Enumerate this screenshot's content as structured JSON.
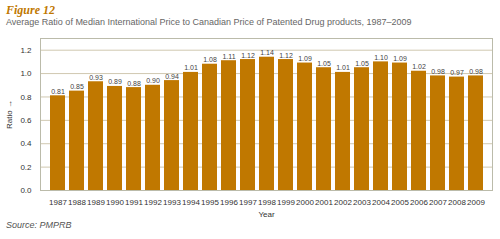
{
  "chart_data": {
    "type": "bar",
    "title": "Figure 12",
    "subtitle": "Average Ratio of Median International Price to Canadian Price of Patented Drug products, 1987–2009",
    "xlabel": "Year",
    "ylabel": "Ratio",
    "annotations": [
      "Source: PMPRB"
    ],
    "categories": [
      "1987",
      "1988",
      "1989",
      "1990",
      "1991",
      "1992",
      "1993",
      "1994",
      "1995",
      "1996",
      "1997",
      "1998",
      "1999",
      "2000",
      "2001",
      "2002",
      "2003",
      "2004",
      "2005",
      "2006",
      "2007",
      "2008",
      "2009"
    ],
    "values": [
      0.81,
      0.85,
      0.93,
      0.89,
      0.88,
      0.9,
      0.94,
      1.01,
      1.08,
      1.11,
      1.12,
      1.14,
      1.12,
      1.09,
      1.05,
      1.01,
      1.05,
      1.1,
      1.09,
      1.02,
      0.98,
      0.97,
      0.98
    ],
    "value_labels": [
      "0.81",
      "0.85",
      "0.93",
      "0.89",
      "0.88",
      "0.90",
      "0.94",
      "1.01",
      "1.08",
      "1.11",
      "1.12",
      "1.14",
      "1.12",
      "1.09",
      "1.05",
      "1.01",
      "1.05",
      "1.10",
      "1.09",
      "1.02",
      "0.98",
      "0.97",
      "0.98"
    ],
    "data_labels": true,
    "color": "#C07800",
    "ylim": [
      0.0,
      1.3
    ],
    "yticks": [
      {
        "value": 0,
        "label": "0.0"
      },
      0.2,
      0.4,
      0.6,
      0.8,
      {
        "value": 1,
        "label": "1.0"
      },
      1.2
    ],
    "grid": true
  }
}
